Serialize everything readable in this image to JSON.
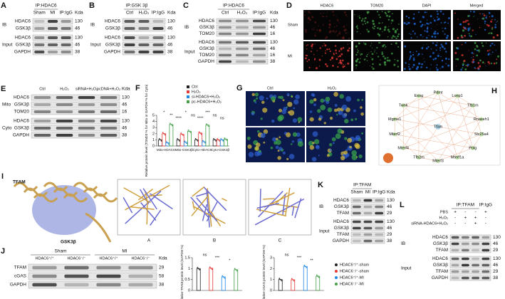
{
  "panels": {
    "A": {
      "letter": "A",
      "ip": "IP:HDAC6",
      "ip2": "IP:IgG",
      "lanes": [
        "Sham",
        "MI"
      ],
      "kda_header": "Kda",
      "groups": [
        {
          "label": "IB",
          "rows": [
            "HDAC6",
            "GSK3β"
          ]
        },
        {
          "label": "Input",
          "rows": [
            "HDAC6",
            "GSK3β",
            "GAPDH"
          ]
        }
      ],
      "kda": [
        "130",
        "46",
        "130",
        "46",
        "38"
      ]
    },
    "B": {
      "letter": "B",
      "ip": "IP:GSK 3β",
      "ip2": "IP:IgG",
      "lanes": [
        "Ctrl",
        "H₂O₂"
      ],
      "kda_header": "Kda",
      "groups": [
        {
          "label": "IB",
          "rows": [
            "HDAC6",
            "GSK3β"
          ]
        },
        {
          "label": "Input",
          "rows": [
            "HDAC6",
            "GSK3β",
            "GAPDH"
          ]
        }
      ],
      "kda": [
        "130",
        "46",
        "130",
        "46",
        "38"
      ]
    },
    "C": {
      "letter": "C",
      "ip": "IP:HDAC6",
      "ip2": "IP:IgG",
      "lanes": [
        "Ctrl",
        "H₂O₂"
      ],
      "kda_header": "Kda",
      "groups": [
        {
          "label": "IB",
          "rows": [
            "HDAC6",
            "GSK3β",
            "TOM20"
          ]
        },
        {
          "label": "Input",
          "rows": [
            "HDAC6",
            "GSK3β",
            "TOM20",
            "GAPDH"
          ]
        }
      ],
      "kda": [
        "130",
        "46",
        "16",
        "130",
        "46",
        "16",
        "38"
      ]
    },
    "D": {
      "letter": "D",
      "columns": [
        "HDAC6",
        "TOM20",
        "DAPI",
        "Merged"
      ],
      "rows": [
        "Sham",
        "MI"
      ]
    },
    "E": {
      "letter": "E",
      "lanes": [
        "Ctrl",
        "H₂O₂",
        "siRNA+H₂O₂",
        "pcDNA+H₂O₂"
      ],
      "kda_header": "Kda",
      "groups": [
        {
          "label": "Mito",
          "rows": [
            "HDAC6",
            "GSK3β",
            "TOM20"
          ]
        },
        {
          "label": "Cyto",
          "rows": [
            "HDAC6",
            "GSK3β",
            "GAPDH"
          ]
        }
      ],
      "kda": [
        "130",
        "46",
        "16",
        "130",
        "46",
        "38"
      ]
    },
    "F": {
      "letter": "F",
      "ylabel": "Relative protein level (TOM20 % for Mito or GAPDH % for Cyto)",
      "categories": [
        "Mito-HDAC6",
        "Mito-GSK3β",
        "Cyto-HDAC6",
        "Cyto-GSK3β"
      ],
      "series": [
        {
          "name": "Ctrl",
          "color": "#222222",
          "values": [
            1,
            1,
            1,
            1
          ]
        },
        {
          "name": "H₂O₂",
          "color": "#e53935",
          "values": [
            2.0,
            1.9,
            2.1,
            1.0
          ]
        },
        {
          "name": "si-HDAC6+H₂O₂",
          "color": "#1e88e5",
          "values": [
            0.5,
            0.6,
            0.7,
            1.0
          ]
        },
        {
          "name": "pc-HDAC6+H₂O₂",
          "color": "#43a047",
          "values": [
            3.5,
            2.4,
            3.4,
            1.1
          ]
        }
      ],
      "ylim": [
        0,
        5
      ],
      "yticks": [
        0,
        1,
        2,
        3,
        4,
        5
      ],
      "annotations": [
        "*",
        "**",
        "****",
        "*",
        "ns",
        "****",
        "***",
        "ns",
        "ns"
      ]
    },
    "G": {
      "letter": "G",
      "columns": [
        "Ctrl",
        "H₂O₂"
      ]
    },
    "H": {
      "letter": "H",
      "center": "Tfam",
      "genes": [
        "Pdmt",
        "Lonp1",
        "Tfb1m",
        "Rnaseh1",
        "Slc25a4",
        "Polg",
        "Mterf1a",
        "Mterf3",
        "Tfb2m",
        "Mterf4",
        "Mterf2",
        "Mgme1",
        "Twnk",
        "Exog"
      ]
    },
    "I": {
      "letter": "I",
      "labels": [
        "TFAM",
        "GSK3β"
      ],
      "boxes": [
        "A",
        "B",
        "C"
      ]
    },
    "J": {
      "letter": "J",
      "header_groups": [
        "Sham",
        "MI"
      ],
      "lanes": [
        "HDAC6⁺/⁺",
        "HDAC6⁻/⁻",
        "HDAC6⁺/⁺",
        "HDAC6⁻/⁻"
      ],
      "kda_header": "Kda",
      "groups": [
        {
          "rows": [
            "TFAM",
            "cGAS",
            "GAPDH"
          ]
        }
      ],
      "kda": [
        "29",
        "58",
        "38"
      ],
      "legend": [
        {
          "name": "HDAC6⁺/⁺-sham",
          "color": "#222222"
        },
        {
          "name": "HDAC6⁻/⁻-sham",
          "color": "#e53935"
        },
        {
          "name": "HDAC6⁺/⁺-MI",
          "color": "#1e88e5"
        },
        {
          "name": "HDAC6⁻/⁻-MI",
          "color": "#43a047"
        }
      ],
      "charts": [
        {
          "ylabel": "Relative TFAM protein level (GAPDH %)",
          "values": [
            1.0,
            1.02,
            0.62,
            0.95
          ],
          "ylim": [
            0,
            1.5
          ],
          "yticks": [
            0,
            0.5,
            1,
            1.5
          ],
          "annotations": [
            "ns",
            "***",
            "*"
          ]
        },
        {
          "ylabel": "Relative cGAS protein level (GAPDH %)",
          "values": [
            1.0,
            0.98,
            2.2,
            1.3
          ],
          "ylim": [
            0,
            3
          ],
          "yticks": [
            0,
            1,
            2,
            3
          ],
          "annotations": [
            "ns",
            "***",
            "**"
          ]
        }
      ]
    },
    "K": {
      "letter": "K",
      "ip": "IP:TFAM",
      "ip2": "IP:IgG",
      "lanes": [
        "Sham",
        "MI"
      ],
      "kda_header": "Kda",
      "groups": [
        {
          "label": "IB",
          "rows": [
            "HDAC6",
            "GSK3β",
            "TFAM"
          ]
        },
        {
          "label": "Input",
          "rows": [
            "HDAC6",
            "GSK3β",
            "TFAM",
            "GAPDH"
          ]
        }
      ],
      "kda": [
        "130",
        "46",
        "29",
        "130",
        "46",
        "29",
        "38"
      ]
    },
    "L": {
      "letter": "L",
      "ip": "IP:TFAM",
      "ip2": "IP:IgG",
      "conditions": [
        {
          "name": "PBS",
          "signs": [
            "+",
            "-",
            "-",
            "+"
          ]
        },
        {
          "name": "H₂O₂",
          "signs": [
            "-",
            "+",
            "+",
            "-"
          ]
        },
        {
          "name": "siRNA-HDAC6+H₂O₂",
          "signs": [
            "-",
            "-",
            "+",
            "-"
          ]
        }
      ],
      "groups": [
        {
          "label": "IB",
          "rows": [
            "HDAC6",
            "GSK3β",
            "TFAM"
          ]
        },
        {
          "label": "Input",
          "rows": [
            "HDAC6",
            "GSK3β",
            "TFAM",
            "GAPDH"
          ]
        }
      ],
      "kda": [
        "130",
        "46",
        "29",
        "130",
        "46",
        "29",
        "38"
      ]
    }
  }
}
